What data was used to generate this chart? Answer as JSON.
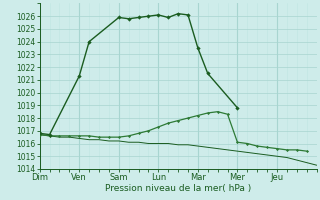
{
  "xlabel": "Pression niveau de la mer( hPa )",
  "ylim": [
    1014,
    1027
  ],
  "yticks": [
    1014,
    1015,
    1016,
    1017,
    1018,
    1019,
    1020,
    1021,
    1022,
    1023,
    1024,
    1025,
    1026
  ],
  "day_labels": [
    "Dim",
    "Ven",
    "Sam",
    "Lun",
    "Mar",
    "Mer",
    "Jeu"
  ],
  "background_color": "#ceecea",
  "grid_color_major": "#a8d5d0",
  "grid_color_minor": "#bfe6e2",
  "line_color1": "#1a5c20",
  "line_color2": "#2d7a35",
  "line_color3": "#1a5c20",
  "day_positions": [
    0,
    4,
    8,
    12,
    16,
    20,
    24
  ],
  "total_steps": 28,
  "series1_x": [
    0,
    1,
    4,
    5,
    8,
    9,
    10,
    11,
    12,
    13,
    14,
    15,
    16,
    17,
    20
  ],
  "series1_y": [
    1016.8,
    1016.7,
    1021.3,
    1024.0,
    1025.9,
    1025.8,
    1025.9,
    1026.0,
    1026.1,
    1025.9,
    1026.2,
    1026.1,
    1023.5,
    1021.5,
    1018.8
  ],
  "series2_x": [
    0,
    1,
    2,
    3,
    4,
    5,
    6,
    7,
    8,
    9,
    10,
    11,
    12,
    13,
    14,
    15,
    16,
    17,
    18,
    19,
    20,
    21,
    22,
    23,
    24,
    25,
    26,
    27
  ],
  "series2_y": [
    1016.7,
    1016.6,
    1016.6,
    1016.6,
    1016.6,
    1016.6,
    1016.5,
    1016.5,
    1016.5,
    1016.6,
    1016.8,
    1017.0,
    1017.3,
    1017.6,
    1017.8,
    1018.0,
    1018.2,
    1018.4,
    1018.5,
    1018.3,
    1016.1,
    1016.0,
    1015.8,
    1015.7,
    1015.6,
    1015.5,
    1015.5,
    1015.4
  ],
  "series3_x": [
    0,
    1,
    2,
    3,
    4,
    5,
    6,
    7,
    8,
    9,
    10,
    11,
    12,
    13,
    14,
    15,
    16,
    17,
    18,
    19,
    20,
    21,
    22,
    23,
    24,
    25,
    26,
    27,
    28
  ],
  "series3_y": [
    1016.7,
    1016.6,
    1016.5,
    1016.5,
    1016.4,
    1016.3,
    1016.3,
    1016.2,
    1016.2,
    1016.1,
    1016.1,
    1016.0,
    1016.0,
    1016.0,
    1015.9,
    1015.9,
    1015.8,
    1015.7,
    1015.6,
    1015.5,
    1015.4,
    1015.3,
    1015.2,
    1015.1,
    1015.0,
    1014.9,
    1014.7,
    1014.5,
    1014.3
  ]
}
